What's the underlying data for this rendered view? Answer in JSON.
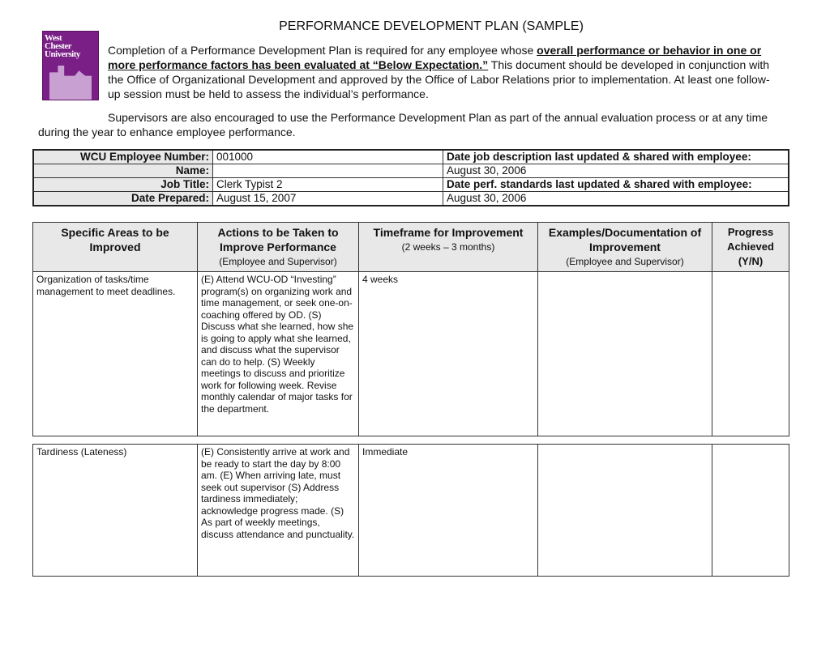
{
  "title": "PERFORMANCE DEVELOPMENT PLAN (SAMPLE)",
  "logo": {
    "text": "West Chester University"
  },
  "intro": {
    "p1_a": "Completion of a Performance Development Plan is required for any employee whose ",
    "p1_bold": "overall performance or behavior in one or more performance factors has been evaluated at “Below Expectation.”",
    "p1_b": "  This document should be developed in conjunction with the Office of Organizational Development and approved by the Office of Labor Relations prior to implementation.  At least one follow-up session must be held to assess the individual’s performance.",
    "p2": "Supervisors are also encouraged to use the Performance Development Plan as part of the annual evaluation process or at any time during the year to enhance employee performance."
  },
  "info": {
    "rows": [
      {
        "label": "WCU Employee Number:",
        "value": "001000",
        "right": "Date job description last updated & shared with employee:",
        "right_bold": true
      },
      {
        "label": "Name:",
        "value": "",
        "right": "August 30, 2006",
        "right_bold": false
      },
      {
        "label": "Job Title:",
        "value": "Clerk Typist 2",
        "right": "Date perf. standards last updated & shared with employee:",
        "right_bold": true
      },
      {
        "label": "Date Prepared:",
        "value": "August 15, 2007",
        "right": "August 30, 2006",
        "right_bold": false
      }
    ]
  },
  "plan": {
    "headers": [
      {
        "title": "Specific Areas to be Improved",
        "sub": ""
      },
      {
        "title": "Actions to be Taken to Improve Performance",
        "sub": "(Employee and Supervisor)"
      },
      {
        "title": "Timeframe for Improvement",
        "sub": "(2 weeks – 3 months)"
      },
      {
        "title": "Examples/Documentation of Improvement",
        "sub": "(Employee and Supervisor)"
      },
      {
        "title": "Progress Achieved (Y/N)",
        "sub": ""
      }
    ],
    "rows": [
      {
        "area": "Organization of tasks/time management to meet deadlines.",
        "actions": "(E)  Attend WCU-OD “Investing” program(s) on organizing work and time management, or seek one-on-coaching offered by OD. (S) Discuss what she learned, how she is going to apply what she learned, and discuss what the supervisor can do to help. (S) Weekly meetings to discuss and prioritize work for following week. Revise monthly calendar of major tasks for the department.",
        "timeframe": "4 weeks",
        "examples": "",
        "progress": ""
      },
      {
        "area": "Tardiness (Lateness)",
        "actions": "(E) Consistently arrive at work and be ready to start the day by 8:00 am. (E) When arriving late, must seek out supervisor (S) Address tardiness immediately; acknowledge progress made. (S) As part of weekly meetings, discuss attendance and punctuality.",
        "timeframe": "Immediate",
        "examples": "",
        "progress": ""
      }
    ]
  }
}
